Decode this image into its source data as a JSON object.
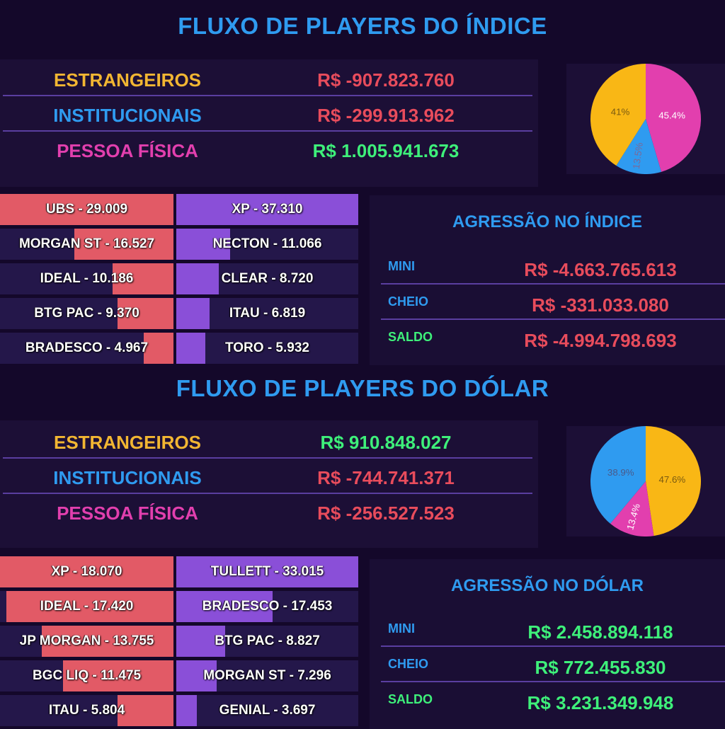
{
  "colors": {
    "title": "#2f9bf0",
    "estrangeiros": "#f2b632",
    "institucionais": "#2f9bf0",
    "pessoa_fisica": "#e23fae",
    "negative": "#e84c5c",
    "positive": "#3ef07a",
    "sell_bar": "#e25a66",
    "buy_bar": "#8a4fd8"
  },
  "indice": {
    "title": "FLUXO DE PLAYERS DO ÍNDICE",
    "players": [
      {
        "name": "ESTRANGEIROS",
        "value": "R$ -907.823.760",
        "name_color": "#f2b632",
        "value_color": "#e84c5c"
      },
      {
        "name": "INSTITUCIONAIS",
        "value": "R$ -299.913.962",
        "name_color": "#2f9bf0",
        "value_color": "#e84c5c"
      },
      {
        "name": "PESSOA FÍSICA",
        "value": "R$ 1.005.941.673",
        "name_color": "#e23fae",
        "value_color": "#3ef07a"
      }
    ],
    "brokers": [
      {
        "sell_label": "UBS - 29.009",
        "sell": 29009,
        "buy_label": "XP - 37.310",
        "buy": 37310
      },
      {
        "sell_label": "MORGAN ST - 16.527",
        "sell": 16527,
        "buy_label": "NECTON - 11.066",
        "buy": 11066
      },
      {
        "sell_label": "IDEAL - 10.186",
        "sell": 10186,
        "buy_label": "CLEAR - 8.720",
        "buy": 8720
      },
      {
        "sell_label": "BTG PAC - 9.370",
        "sell": 9370,
        "buy_label": "ITAU - 6.819",
        "buy": 6819
      },
      {
        "sell_label": "BRADESCO - 4.967",
        "sell": 4967,
        "buy_label": "TORO - 5.932",
        "buy": 5932
      }
    ],
    "aggression": {
      "title": "AGRESSÃO NO ÍNDICE",
      "rows": [
        {
          "label": "MINI",
          "value": "R$ -4.663.765.613",
          "label_color": "#2f9bf0",
          "value_color": "#e84c5c"
        },
        {
          "label": "CHEIO",
          "value": "R$ -331.033.080",
          "label_color": "#2f9bf0",
          "value_color": "#e84c5c"
        },
        {
          "label": "SALDO",
          "value": "R$ -4.994.798.693",
          "label_color": "#3ef07a",
          "value_color": "#e84c5c"
        }
      ]
    }
  },
  "dolar": {
    "title": "FLUXO DE PLAYERS DO DÓLAR",
    "players": [
      {
        "name": "ESTRANGEIROS",
        "value": "R$ 910.848.027",
        "name_color": "#f2b632",
        "value_color": "#3ef07a"
      },
      {
        "name": "INSTITUCIONAIS",
        "value": "R$ -744.741.371",
        "name_color": "#2f9bf0",
        "value_color": "#e84c5c"
      },
      {
        "name": "PESSOA FÍSICA",
        "value": "R$ -256.527.523",
        "name_color": "#e23fae",
        "value_color": "#e84c5c"
      }
    ],
    "brokers": [
      {
        "sell_label": "XP - 18.070",
        "sell": 18070,
        "buy_label": "TULLETT - 33.015",
        "buy": 33015
      },
      {
        "sell_label": "IDEAL - 17.420",
        "sell": 17420,
        "buy_label": "BRADESCO - 17.453",
        "buy": 17453
      },
      {
        "sell_label": "JP MORGAN - 13.755",
        "sell": 13755,
        "buy_label": "BTG PAC - 8.827",
        "buy": 8827
      },
      {
        "sell_label": "BGC LIQ - 11.475",
        "sell": 11475,
        "buy_label": "MORGAN ST - 7.296",
        "buy": 7296
      },
      {
        "sell_label": "ITAU - 5.804",
        "sell": 5804,
        "buy_label": "GENIAL - 3.697",
        "buy": 3697
      }
    ],
    "aggression": {
      "title": "AGRESSÃO NO DÓLAR",
      "rows": [
        {
          "label": "MINI",
          "value": "R$ 2.458.894.118",
          "label_color": "#2f9bf0",
          "value_color": "#3ef07a"
        },
        {
          "label": "CHEIO",
          "value": "R$ 772.455.830",
          "label_color": "#2f9bf0",
          "value_color": "#3ef07a"
        },
        {
          "label": "SALDO",
          "value": "R$ 3.231.349.948",
          "label_color": "#3ef07a",
          "value_color": "#3ef07a"
        }
      ]
    }
  },
  "chart_data": [
    {
      "type": "pie",
      "title": "",
      "slices": [
        {
          "label": "45.4%",
          "value": 45.4,
          "color": "#e23fae",
          "text_color": "#ffffff"
        },
        {
          "label": "13.5%",
          "value": 13.5,
          "color": "#2f9bf0",
          "text_color": "#7a6a9a"
        },
        {
          "label": "41%",
          "value": 41.0,
          "color": "#f9b715",
          "text_color": "#7a5a10"
        }
      ]
    },
    {
      "type": "pie",
      "title": "",
      "slices": [
        {
          "label": "47.6%",
          "value": 47.6,
          "color": "#f9b715",
          "text_color": "#7a5a10"
        },
        {
          "label": "13.4%",
          "value": 13.4,
          "color": "#e23fae",
          "text_color": "#ffffff"
        },
        {
          "label": "38.9%",
          "value": 38.9,
          "color": "#2f9bf0",
          "text_color": "#4a5a8a"
        }
      ]
    }
  ]
}
